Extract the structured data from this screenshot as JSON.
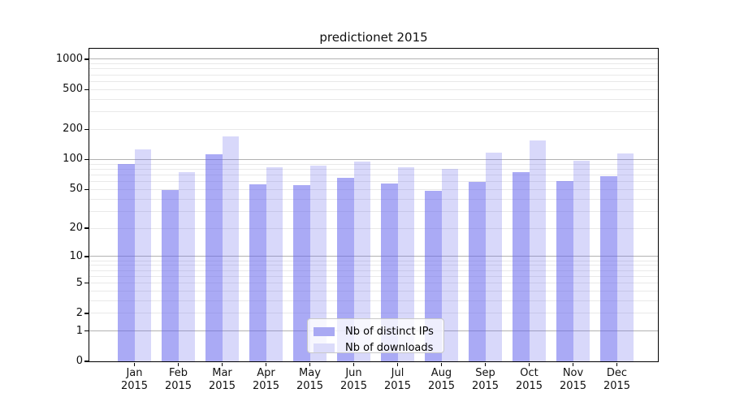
{
  "chart_data": {
    "type": "bar",
    "title": "predictionet 2015",
    "categories": [
      "Jan",
      "Feb",
      "Mar",
      "Apr",
      "May",
      "Jun",
      "Jul",
      "Aug",
      "Sep",
      "Oct",
      "Nov",
      "Dec"
    ],
    "x_year": "2015",
    "series": [
      {
        "name": "Nb of distinct IPs",
        "values": [
          90,
          49,
          112,
          56,
          55,
          65,
          57,
          48,
          60,
          74,
          61,
          68
        ],
        "color": "rgba(101,101,237,0.55)",
        "color_hex": "#a9a9f3"
      },
      {
        "name": "Nb of downloads",
        "values": [
          126,
          75,
          171,
          83,
          86,
          95,
          84,
          80,
          118,
          156,
          97,
          114
        ],
        "color": "rgba(101,101,237,0.25)",
        "color_hex": "#dcdcfa"
      }
    ],
    "y_ticks": [
      0,
      1,
      2,
      5,
      10,
      20,
      50,
      100,
      200,
      500,
      1000
    ],
    "y_scale": "log1p",
    "ylim": [
      0,
      1280
    ],
    "grid": {
      "orientation": "horizontal",
      "major_color": "#b2b2b2",
      "minor_color": "#e9e9e9",
      "major_at": [
        1,
        10,
        100,
        1000
      ]
    },
    "axis_color": "#000000",
    "legend": {
      "position": "lower-center-inside"
    }
  }
}
